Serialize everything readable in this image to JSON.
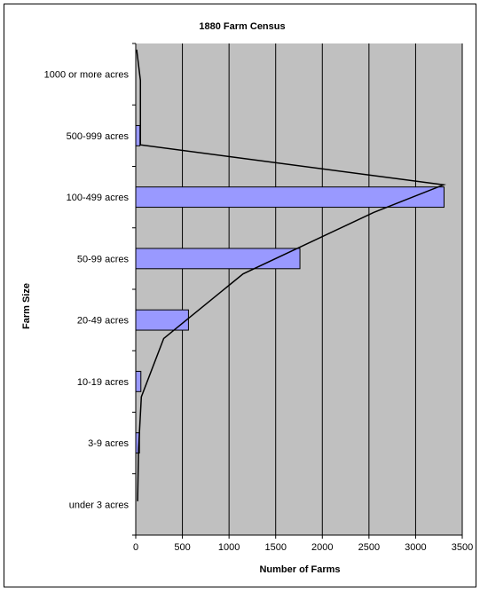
{
  "chart_data": {
    "type": "bar",
    "orientation": "horizontal",
    "title": "1880 Farm Census",
    "xlabel": "Number of Farms",
    "ylabel": "Farm Size",
    "xlim": [
      0,
      3500
    ],
    "x_ticks": [
      0,
      500,
      1000,
      1500,
      2000,
      2500,
      3000,
      3500
    ],
    "grid": "vertical",
    "categories": [
      "under 3 acres",
      "3-9 acres",
      "10-19 acres",
      "20-49 acres",
      "50-99 acres",
      "100-499 acres",
      "500-999 acres",
      "1000 or more acres"
    ],
    "values": [
      0,
      40,
      55,
      565,
      1760,
      3305,
      45,
      0
    ],
    "overlay_line": {
      "type": "line",
      "points": [
        {
          "x": 20,
          "y": 0.55
        },
        {
          "x": 30,
          "y": 1.4
        },
        {
          "x": 60,
          "y": 2.25
        },
        {
          "x": 300,
          "y": 3.2
        },
        {
          "x": 1150,
          "y": 4.25
        },
        {
          "x": 2550,
          "y": 5.25
        },
        {
          "x": 3300,
          "y": 5.7
        },
        {
          "x": 50,
          "y": 6.35
        },
        {
          "x": 50,
          "y": 7.4
        },
        {
          "x": 10,
          "y": 7.9
        }
      ]
    },
    "colors": {
      "bar_fill": "#9999FF",
      "bar_stroke": "#000000",
      "plot_background": "#C0C0C0",
      "grid": "#000000",
      "line": "#000000"
    }
  }
}
